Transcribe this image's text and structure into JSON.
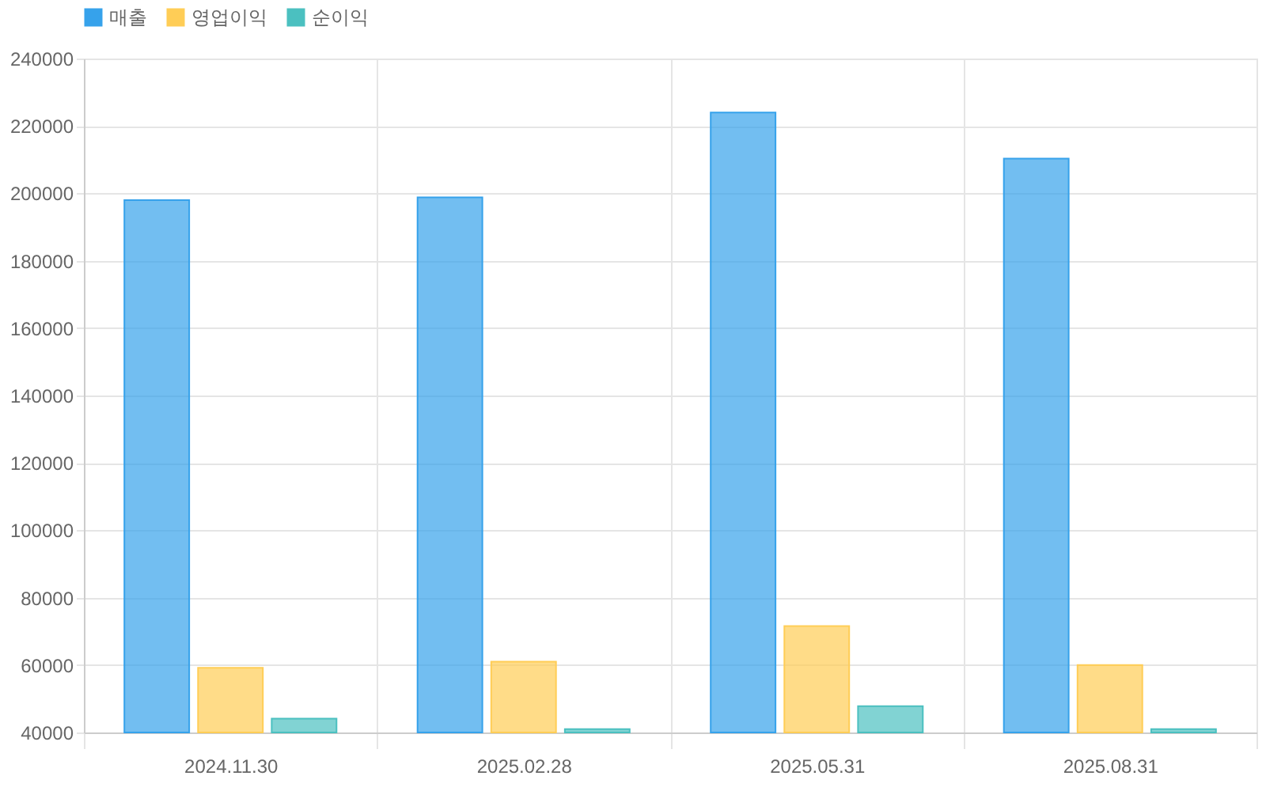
{
  "chart_data": {
    "type": "bar",
    "categories": [
      "2024.11.30",
      "2025.02.28",
      "2025.05.31",
      "2025.08.31"
    ],
    "series": [
      {
        "name": "매출",
        "color": "#36a2eb",
        "values": [
          198000,
          198800,
          224000,
          210300
        ]
      },
      {
        "name": "영업이익",
        "color": "#ffcd56",
        "values": [
          59200,
          61000,
          71600,
          60000
        ]
      },
      {
        "name": "순이익",
        "color": "#4bc0c0",
        "values": [
          44100,
          41000,
          47800,
          41000
        ]
      }
    ],
    "ylim": [
      40000,
      240000
    ],
    "yticks": [
      40000,
      60000,
      80000,
      100000,
      120000,
      140000,
      160000,
      180000,
      200000,
      220000,
      240000
    ],
    "grid": true,
    "legend": "top"
  }
}
